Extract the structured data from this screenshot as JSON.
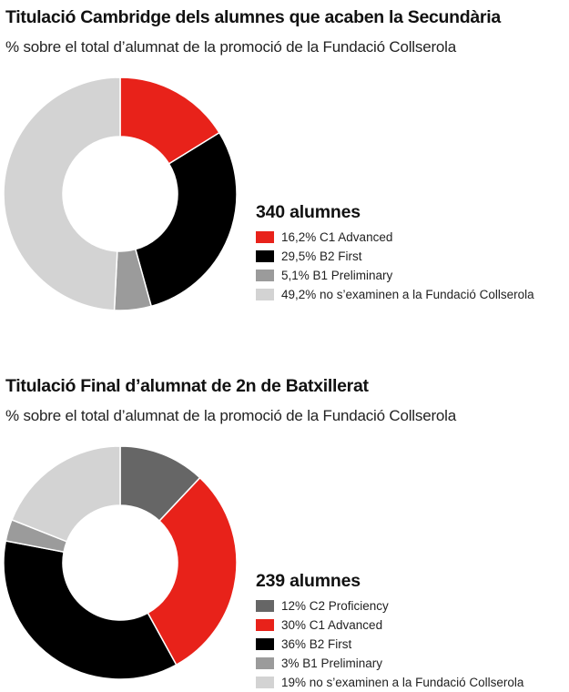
{
  "chart_data": [
    {
      "type": "pie",
      "title": "Titulació Cambridge dels alumnes que acaben la Secundària",
      "subtitle": "% sobre el total d’alumnat de la promoció de la Fundació Collserola",
      "total_label": "340 alumnes",
      "categories": [
        "C1 Advanced",
        "B2 First",
        "B1 Preliminary",
        "no s’examinen a la Fundació Collserola"
      ],
      "values": [
        16.2,
        29.5,
        5.1,
        49.2
      ],
      "legend_labels": [
        "16,2% C1 Advanced",
        "29,5% B2 First",
        "5,1% B1 Preliminary",
        "49,2% no s’examinen a la Fundació Collserola"
      ],
      "colors": [
        "#e8221a",
        "#000000",
        "#9b9b9b",
        "#d3d3d3"
      ],
      "legend_placement": "right"
    },
    {
      "type": "pie",
      "title": "Titulació Final d’alumnat de 2n de Batxillerat",
      "subtitle": "% sobre el total d’alumnat de la promoció de la Fundació Collserola",
      "total_label": "239 alumnes",
      "categories": [
        "C2 Proficiency",
        "C1 Advanced",
        "B2 First",
        "B1 Preliminary",
        "no s’examinen a la Fundació Collserola"
      ],
      "values": [
        12,
        30,
        36,
        3,
        19
      ],
      "legend_labels": [
        "12% C2 Proficiency",
        "30% C1 Advanced",
        "36% B2 First",
        "3% B1 Preliminary",
        "19% no s’examinen a la Fundació Collserola"
      ],
      "colors": [
        "#666666",
        "#e8221a",
        "#000000",
        "#9b9b9b",
        "#d3d3d3"
      ],
      "legend_placement": "right"
    }
  ]
}
